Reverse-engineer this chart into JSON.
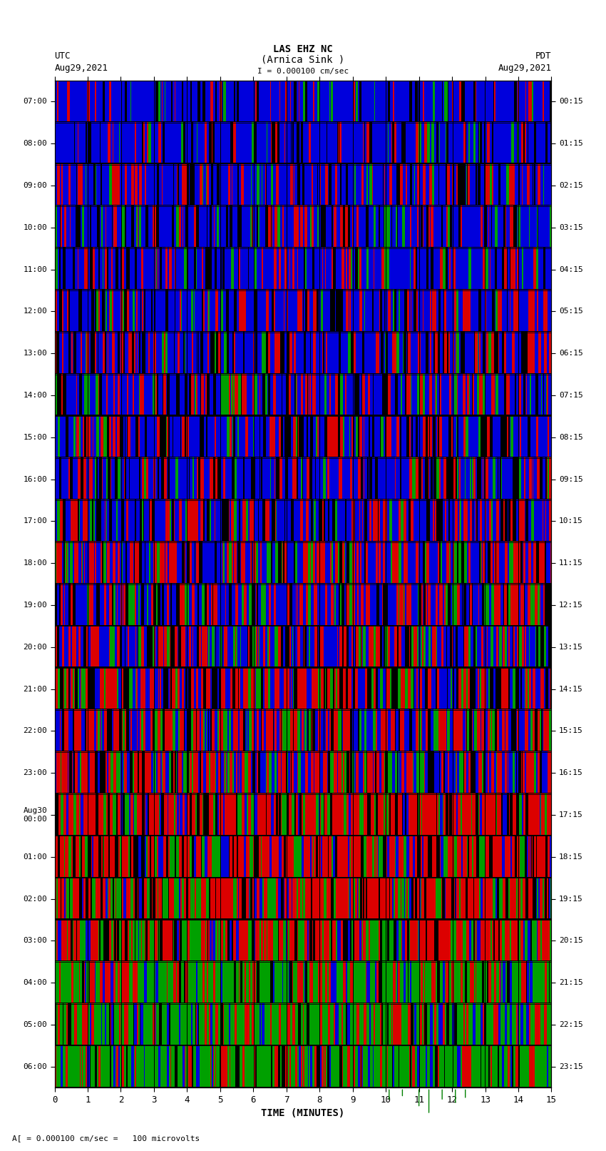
{
  "title_line1": "LAS EHZ NC",
  "title_line2": "(Arnica Sink )",
  "scale_text": "I = 0.000100 cm/sec",
  "left_label_top": "UTC",
  "left_label_date": "Aug29,2021",
  "right_label_top": "PDT",
  "right_label_date": "Aug29,2021",
  "bottom_label": "TIME (MINUTES)",
  "bottom_note": "A[ = 0.000100 cm/sec =   100 microvolts",
  "utc_times": [
    "07:00",
    "08:00",
    "09:00",
    "10:00",
    "11:00",
    "12:00",
    "13:00",
    "14:00",
    "15:00",
    "16:00",
    "17:00",
    "18:00",
    "19:00",
    "20:00",
    "21:00",
    "22:00",
    "23:00",
    "Aug30\n00:00",
    "01:00",
    "02:00",
    "03:00",
    "04:00",
    "05:00",
    "06:00"
  ],
  "pdt_times": [
    "00:15",
    "01:15",
    "02:15",
    "03:15",
    "04:15",
    "05:15",
    "06:15",
    "07:15",
    "08:15",
    "09:15",
    "10:15",
    "11:15",
    "12:15",
    "13:15",
    "14:15",
    "15:15",
    "16:15",
    "17:15",
    "18:15",
    "19:15",
    "20:15",
    "21:15",
    "22:15",
    "23:15"
  ],
  "x_ticks": [
    0,
    1,
    2,
    3,
    4,
    5,
    6,
    7,
    8,
    9,
    10,
    11,
    12,
    13,
    14,
    15
  ],
  "fig_width": 8.5,
  "fig_height": 16.13,
  "dpi": 100,
  "bg_color": "white",
  "n_rows": 24,
  "n_cols": 700,
  "seed": 12345,
  "color_zones": {
    "blue_rows": [
      0,
      16
    ],
    "red_rows": [
      16,
      21
    ],
    "green_rows": [
      21,
      24
    ]
  }
}
